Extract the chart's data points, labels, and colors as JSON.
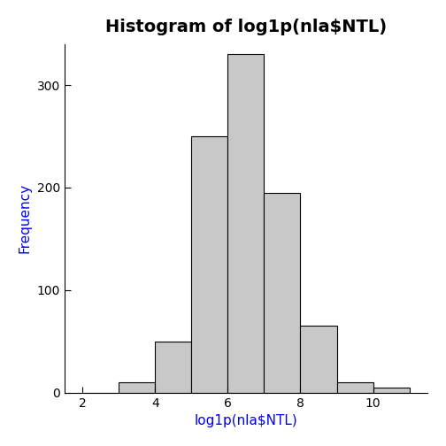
{
  "title": "Histogram of log1p(nla$NTL)",
  "xlabel": "log1p(nla$NTL)",
  "ylabel": "Frequency",
  "bar_edges": [
    2,
    3,
    4,
    5,
    6,
    7,
    8,
    9,
    10,
    11
  ],
  "bar_heights": [
    0,
    10,
    50,
    250,
    330,
    195,
    65,
    10,
    5
  ],
  "bar_color": "#c8c8c8",
  "bar_edgecolor": "#000000",
  "bar_linewidth": 0.8,
  "xlim": [
    1.5,
    11.5
  ],
  "ylim": [
    0,
    340
  ],
  "xticks": [
    2,
    4,
    6,
    8,
    10
  ],
  "yticks": [
    0,
    100,
    200,
    300
  ],
  "title_fontsize": 14,
  "title_fontweight": "bold",
  "axis_label_color": "#0000FF",
  "tick_label_color": "#000000",
  "background_color": "#ffffff",
  "figsize": [
    5.04,
    5.04
  ],
  "dpi": 100
}
